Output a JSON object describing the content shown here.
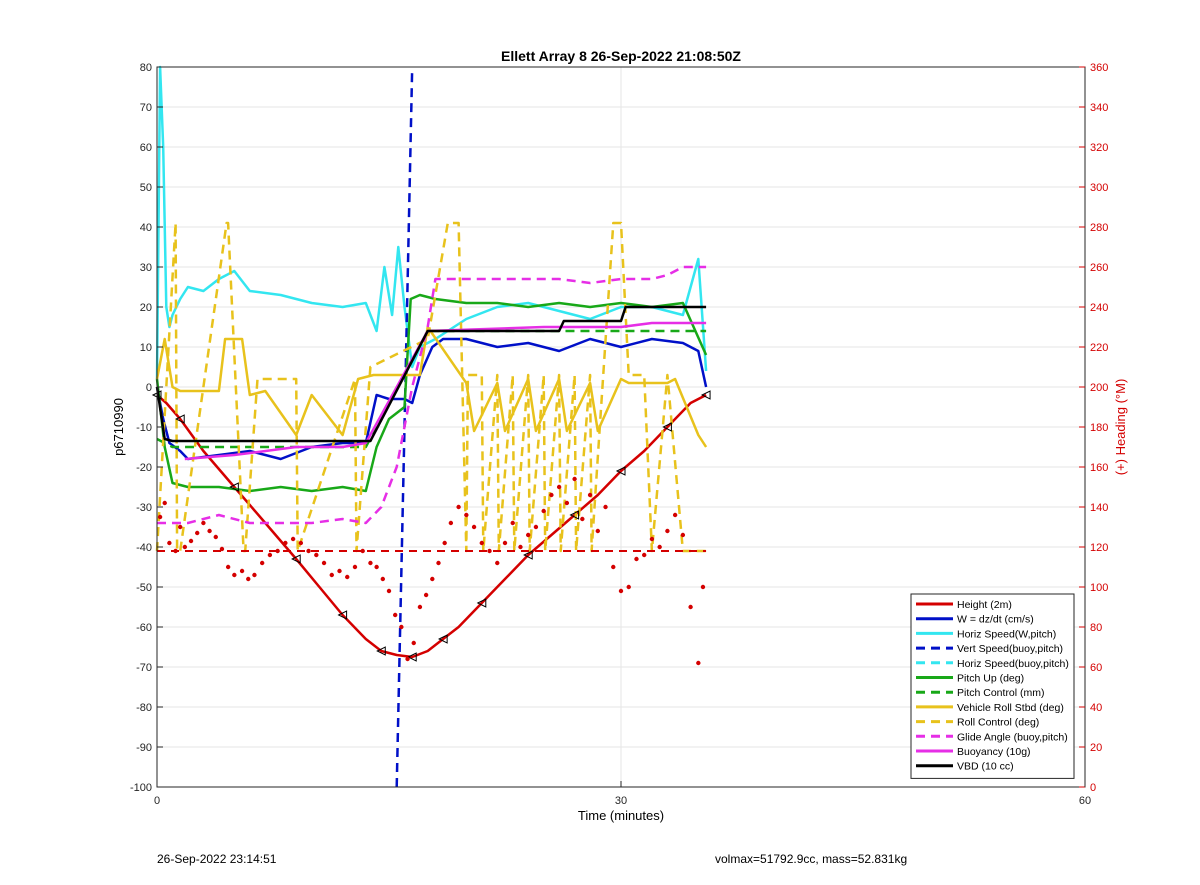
{
  "colors": {
    "height": "#d40000",
    "w": "#0010c8",
    "horiz": "#33e6f0",
    "pitch": "#18a818",
    "roll": "#e8c21c",
    "glide": "#e62ee6",
    "buoy": "#e62ee6",
    "vbd": "#000000",
    "heading": "#d40000",
    "grid": "#e6e6e6"
  },
  "chart_data": {
    "type": "line",
    "title": "Ellett Array 8 26-Sep-2022 21:08:50Z",
    "xlabel": "Time (minutes)",
    "ylabel": "p6710990",
    "ylabel_right": "(+) Heading (°M)",
    "xlim": [
      0,
      60
    ],
    "ylim": [
      -100,
      80
    ],
    "ylim_right": [
      0,
      360
    ],
    "xticks": [
      0,
      30,
      60
    ],
    "yticks": [
      -100,
      -90,
      -80,
      -70,
      -60,
      -50,
      -40,
      -30,
      -20,
      -10,
      0,
      10,
      20,
      30,
      40,
      50,
      60,
      70,
      80
    ],
    "yticks_right": [
      0,
      20,
      40,
      60,
      80,
      100,
      120,
      140,
      160,
      180,
      200,
      220,
      240,
      260,
      280,
      300,
      320,
      340,
      360
    ],
    "grid": true,
    "legend_position": "bottom-right",
    "series": [
      {
        "name": "Height (2m)",
        "color_key": "height",
        "dash": "solid",
        "x": [
          0,
          0.6,
          1.5,
          3,
          5,
          7,
          9,
          10.5,
          12,
          13.5,
          14.5,
          15.5,
          16.5,
          17.5,
          18.5,
          19.5,
          21,
          22.5,
          24,
          25.5,
          27,
          28.5,
          30,
          31.5,
          33,
          34.5,
          35.5
        ],
        "y": [
          -2,
          -4,
          -8,
          -16,
          -25,
          -34,
          -43,
          -50,
          -57,
          -63,
          -66,
          -67,
          -67.5,
          -66,
          -63,
          -60,
          -54,
          -48,
          -42,
          -37,
          -32,
          -27,
          -21,
          -16,
          -10,
          -4,
          -2
        ]
      },
      {
        "name": "W = dz/dt (cm/s)",
        "color_key": "w",
        "dash": "solid",
        "x": [
          0,
          0.4,
          0.8,
          1.5,
          2,
          4,
          6,
          8,
          10,
          12,
          13.5,
          14.2,
          15,
          16,
          16.5,
          17,
          17.8,
          18.5,
          20,
          22,
          24,
          26,
          28,
          30,
          32,
          34,
          35,
          35.5
        ],
        "y": [
          0,
          -8,
          -14,
          -16,
          -18,
          -17,
          -16,
          -18,
          -15,
          -14,
          -14,
          -2,
          -3,
          -3,
          -4,
          3,
          10,
          12,
          12,
          10,
          11,
          9,
          12,
          10,
          12,
          11,
          9,
          0
        ]
      },
      {
        "name": "Horiz Speed(W,pitch)",
        "color_key": "horiz",
        "dash": "solid",
        "x": [
          0,
          0.2,
          0.4,
          0.6,
          0.8,
          1,
          1.5,
          2,
          3,
          4,
          5,
          6,
          8,
          10,
          12,
          13.5,
          14.2,
          14.7,
          15.2,
          15.6,
          16,
          16.5,
          17,
          18,
          20,
          22,
          24,
          26,
          28,
          30,
          32,
          34,
          35,
          35.5
        ],
        "y": [
          2,
          80,
          60,
          20,
          15,
          18,
          22,
          25,
          24,
          27,
          29,
          24,
          23,
          21,
          20,
          21,
          14,
          30,
          18,
          35,
          20,
          5,
          10,
          12,
          17,
          20,
          21,
          19,
          17,
          20,
          20,
          18,
          32,
          4
        ]
      },
      {
        "name": "Vert Speed(buoy,pitch)",
        "color_key": "w",
        "dash": "dash",
        "x": [
          15.5,
          16,
          16.5
        ],
        "y": [
          -100,
          -10,
          80
        ]
      },
      {
        "name": "Horiz Speed(buoy,pitch)",
        "color_key": "horiz",
        "dash": "dash",
        "x": [],
        "y": []
      },
      {
        "name": "Pitch Up (deg)",
        "color_key": "pitch",
        "dash": "solid",
        "x": [
          0,
          0.5,
          1,
          2,
          4,
          6,
          8,
          10,
          12,
          13.5,
          14.2,
          15,
          16,
          16.4,
          17,
          18,
          20,
          22,
          24,
          26,
          28,
          30,
          32,
          34,
          35.5
        ],
        "y": [
          2,
          -15,
          -24,
          -25,
          -25,
          -26,
          -25,
          -26,
          -25,
          -26,
          -15,
          -8,
          -5,
          22,
          23,
          22,
          21,
          21,
          20,
          21,
          20,
          21,
          20,
          21,
          8
        ]
      },
      {
        "name": "Pitch Control (mm)",
        "color_key": "pitch",
        "dash": "dash",
        "x": [
          0,
          1,
          13.5,
          17.5,
          35.5
        ],
        "y": [
          -13,
          -15,
          -15,
          14,
          14
        ]
      },
      {
        "name": "Vehicle Roll Stbd (deg)",
        "color_key": "roll",
        "dash": "solid",
        "x": [
          0,
          0.5,
          1,
          1.5,
          2,
          4,
          4.4,
          5.5,
          6,
          7,
          9,
          10,
          12,
          13,
          14,
          15,
          16,
          17,
          17.5,
          20,
          20.5,
          22,
          22.5,
          24,
          24.5,
          26,
          26.5,
          28,
          28.5,
          30,
          30.5,
          33,
          33.5,
          35,
          35.5
        ],
        "y": [
          2,
          12,
          0,
          -1,
          -1,
          -1,
          12,
          12,
          -2,
          -1,
          -12,
          -2,
          -12,
          2,
          3,
          3,
          3,
          3,
          15,
          1,
          -11,
          1,
          -11,
          2,
          -11,
          2,
          -11,
          1,
          -11,
          2,
          1,
          1,
          2,
          -12,
          -15
        ]
      },
      {
        "name": "Roll Control (deg)",
        "color_key": "roll",
        "dash": "dash",
        "x": [
          0,
          1.2,
          1.3,
          1.5,
          4.5,
          4.6,
          5.6,
          5.7,
          6.5,
          9,
          9.1,
          12.8,
          12.9,
          13.8,
          17.5,
          18.8,
          19.5,
          20,
          20.1,
          21,
          21.1,
          22,
          22.1,
          23,
          23.1,
          24,
          24.1,
          25,
          25.1,
          26,
          26.1,
          27,
          27.1,
          28,
          28.1,
          29.5,
          30,
          30.5,
          31.5,
          32,
          33,
          34,
          35,
          35.5
        ],
        "y": [
          -41,
          41,
          -41,
          -41,
          41,
          41,
          -41,
          -41,
          2,
          2,
          -41,
          2,
          -41,
          5,
          12,
          41,
          41,
          -41,
          3,
          3,
          -41,
          3,
          -41,
          3,
          -41,
          3,
          -41,
          3,
          -41,
          3,
          -41,
          3,
          -41,
          3,
          -41,
          41,
          41,
          3,
          3,
          -41,
          3,
          -41,
          -41,
          -41
        ]
      },
      {
        "name": "Glide Angle (buoy,pitch)",
        "color_key": "glide",
        "dash": "dash",
        "x": [
          0,
          1,
          2,
          4,
          6,
          8,
          10,
          12,
          13.5,
          14.5,
          15.5,
          16.5,
          17.5,
          18,
          19,
          20,
          22,
          24,
          26,
          28,
          30,
          32,
          33,
          34,
          35.5
        ],
        "y": [
          -34,
          -34,
          -34,
          -32,
          -34,
          -34,
          -34,
          -33,
          -34,
          -30,
          -20,
          0,
          15,
          27,
          27,
          27,
          27,
          27,
          27,
          26,
          27,
          27,
          28,
          30,
          30
        ]
      },
      {
        "name": "Buoyancy (10g)",
        "color_key": "buoy",
        "dash": "solid",
        "x": [
          1.8,
          5,
          9,
          12,
          13.5,
          17.5,
          25,
          28,
          30,
          32,
          35.5
        ],
        "y": [
          -18,
          -17,
          -15,
          -15,
          -14,
          14,
          15,
          15,
          15,
          16,
          16
        ]
      },
      {
        "name": "VBD (10 cc)",
        "color_key": "vbd",
        "dash": "solid",
        "x": [
          0,
          0.5,
          1,
          13.8,
          17.5,
          24,
          26,
          26.3,
          30,
          30.3,
          35.5
        ],
        "y": [
          0,
          -13,
          -13.5,
          -13.5,
          14,
          14,
          14,
          16.5,
          16.5,
          20,
          20
        ]
      }
    ],
    "heading_points": {
      "name": "Heading",
      "color_key": "heading",
      "x": [
        0.2,
        0.5,
        0.8,
        1.2,
        1.5,
        1.8,
        2.2,
        2.6,
        3,
        3.4,
        3.8,
        4.2,
        4.6,
        5,
        5.5,
        5.9,
        6.3,
        6.8,
        7.3,
        7.8,
        8.3,
        8.8,
        9.3,
        9.8,
        10.3,
        10.8,
        11.3,
        11.8,
        12.3,
        12.8,
        13.3,
        13.8,
        14.2,
        14.6,
        15,
        15.4,
        15.8,
        16.2,
        16.6,
        17,
        17.4,
        17.8,
        18.2,
        18.6,
        19,
        19.5,
        20,
        20.5,
        21,
        21.5,
        22,
        22.5,
        23,
        23.5,
        24,
        24.5,
        25,
        25.5,
        26,
        26.5,
        27,
        27.5,
        28,
        28.5,
        29,
        29.5,
        30,
        30.5,
        31,
        31.5,
        32,
        32.5,
        33,
        33.5,
        34,
        34.5,
        35,
        35.3
      ],
      "y": [
        135,
        142,
        122,
        118,
        130,
        120,
        123,
        127,
        132,
        128,
        125,
        119,
        110,
        106,
        108,
        104,
        106,
        112,
        116,
        118,
        122,
        124,
        122,
        118,
        116,
        112,
        106,
        108,
        105,
        110,
        118,
        112,
        110,
        104,
        98,
        86,
        80,
        64,
        72,
        90,
        96,
        104,
        112,
        122,
        132,
        140,
        136,
        130,
        122,
        118,
        112,
        122,
        132,
        120,
        126,
        130,
        138,
        146,
        150,
        142,
        154,
        134,
        146,
        128,
        140,
        110,
        98,
        100,
        114,
        116,
        124,
        120,
        128,
        136,
        126,
        90,
        62,
        100
      ]
    },
    "heading_reference": {
      "name": "Heading reference",
      "color_key": "heading",
      "value": 118
    },
    "legend": [
      "Height (2m)",
      "W = dz/dt (cm/s)",
      "Horiz Speed(W,pitch)",
      "Vert Speed(buoy,pitch)",
      "Horiz Speed(buoy,pitch)",
      "Pitch Up (deg)",
      "Pitch Control (mm)",
      "Vehicle Roll Stbd (deg)",
      "Roll Control (deg)",
      "Glide Angle (buoy,pitch)",
      "Buoyancy (10g)",
      "VBD (10 cc)"
    ]
  },
  "footer": {
    "left": "26-Sep-2022 23:14:51",
    "right": "volmax=51792.9cc, mass=52.831kg"
  }
}
